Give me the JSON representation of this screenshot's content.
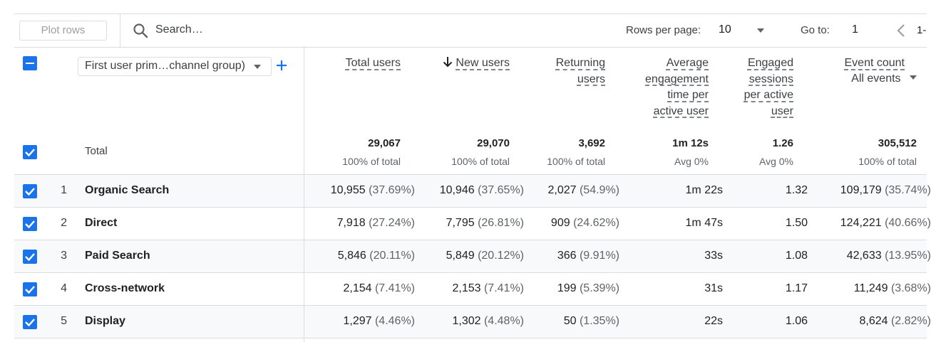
{
  "toolbar": {
    "plot_rows_label": "Plot rows",
    "search_placeholder": "Search…",
    "rows_per_page_label": "Rows per page:",
    "rows_per_page_value": "10",
    "goto_label": "Go to:",
    "goto_value": "1",
    "page_range": "1-"
  },
  "dimension": {
    "label": "First user prim…channel group)"
  },
  "columns": [
    {
      "lines": [
        "Total users"
      ],
      "sorted": false
    },
    {
      "lines": [
        "New users"
      ],
      "sorted": true
    },
    {
      "lines": [
        "Returning",
        "users"
      ],
      "sorted": false
    },
    {
      "lines": [
        "Average",
        "engagement",
        "time per",
        "active user"
      ],
      "sorted": false
    },
    {
      "lines": [
        "Engaged",
        "sessions",
        "per active",
        "user"
      ],
      "sorted": false
    },
    {
      "lines": [
        "Event count"
      ],
      "sorted": false,
      "sub_label": "All events"
    }
  ],
  "totals": {
    "label": "Total",
    "values": [
      "29,067",
      "29,070",
      "3,692",
      "1m 12s",
      "1.26",
      "305,512"
    ],
    "subs": [
      "100% of total",
      "100% of total",
      "100% of total",
      "Avg 0%",
      "Avg 0%",
      "100% of total"
    ]
  },
  "rows": [
    {
      "num": "1",
      "name": "Organic Search",
      "cells": [
        [
          "10,955",
          "(37.69%)"
        ],
        [
          "10,946",
          "(37.65%)"
        ],
        [
          "2,027",
          "(54.9%)"
        ],
        [
          "1m 22s",
          ""
        ],
        [
          "1.32",
          ""
        ],
        [
          "109,179",
          "(35.74%)"
        ]
      ]
    },
    {
      "num": "2",
      "name": "Direct",
      "cells": [
        [
          "7,918",
          "(27.24%)"
        ],
        [
          "7,795",
          "(26.81%)"
        ],
        [
          "909",
          "(24.62%)"
        ],
        [
          "1m 47s",
          ""
        ],
        [
          "1.50",
          ""
        ],
        [
          "124,221",
          "(40.66%)"
        ]
      ]
    },
    {
      "num": "3",
      "name": "Paid Search",
      "cells": [
        [
          "5,846",
          "(20.11%)"
        ],
        [
          "5,849",
          "(20.12%)"
        ],
        [
          "366",
          "(9.91%)"
        ],
        [
          "33s",
          ""
        ],
        [
          "1.08",
          ""
        ],
        [
          "42,633",
          "(13.95%)"
        ]
      ]
    },
    {
      "num": "4",
      "name": "Cross-network",
      "cells": [
        [
          "2,154",
          "(7.41%)"
        ],
        [
          "2,153",
          "(7.41%)"
        ],
        [
          "199",
          "(5.39%)"
        ],
        [
          "31s",
          ""
        ],
        [
          "1.17",
          ""
        ],
        [
          "11,249",
          "(3.68%)"
        ]
      ]
    },
    {
      "num": "5",
      "name": "Display",
      "cells": [
        [
          "1,297",
          "(4.46%)"
        ],
        [
          "1,302",
          "(4.48%)"
        ],
        [
          "50",
          "(1.35%)"
        ],
        [
          "22s",
          ""
        ],
        [
          "1.06",
          ""
        ],
        [
          "8,624",
          "(2.82%)"
        ]
      ]
    }
  ],
  "colors": {
    "accent": "#1a73e8"
  }
}
